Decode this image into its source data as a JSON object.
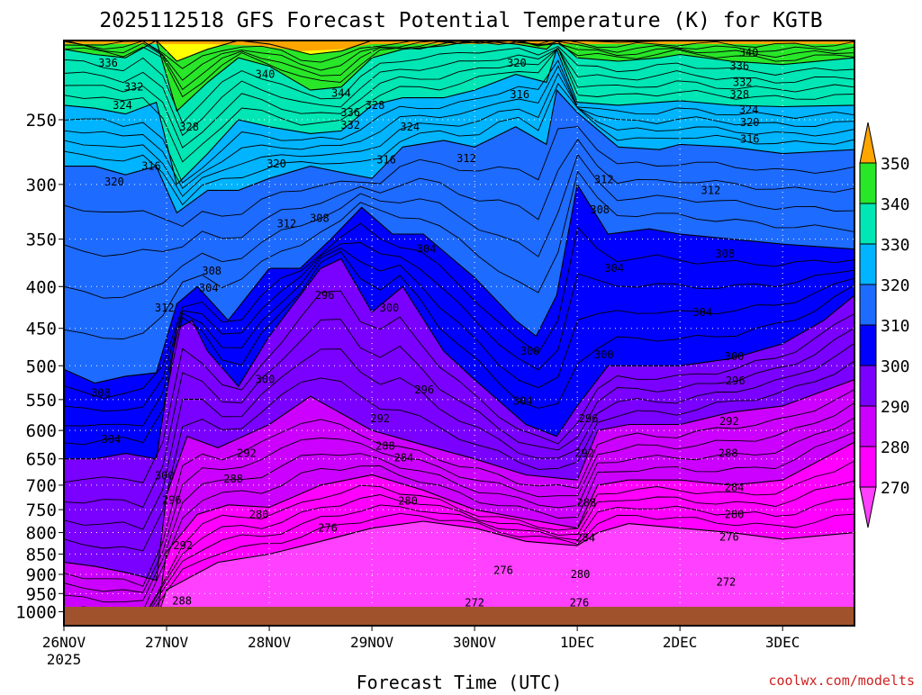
{
  "chart_data": {
    "type": "heatmap",
    "title": "2025112518 GFS Forecast Potential Temperature (K) for KGTB",
    "xlabel": "Forecast Time (UTC)",
    "ylabel": "",
    "credit": "coolwx.com/modelts",
    "x_range_days": [
      0,
      7.7
    ],
    "x_ticks": [
      {
        "day": 0.0,
        "label": "26NOV",
        "sublabel": "2025"
      },
      {
        "day": 1.0,
        "label": "27NOV",
        "sublabel": ""
      },
      {
        "day": 2.0,
        "label": "28NOV",
        "sublabel": ""
      },
      {
        "day": 3.0,
        "label": "29NOV",
        "sublabel": ""
      },
      {
        "day": 4.0,
        "label": "30NOV",
        "sublabel": ""
      },
      {
        "day": 5.0,
        "label": "1DEC",
        "sublabel": ""
      },
      {
        "day": 6.0,
        "label": "2DEC",
        "sublabel": ""
      },
      {
        "day": 7.0,
        "label": "3DEC",
        "sublabel": ""
      }
    ],
    "y_axis": {
      "units": "hPa",
      "reversed": true,
      "log_scale": true,
      "range": [
        1040,
        200
      ],
      "ticks": [
        250,
        300,
        350,
        400,
        450,
        500,
        550,
        600,
        650,
        700,
        750,
        800,
        850,
        900,
        950,
        1000
      ]
    },
    "colorbar": {
      "levels": [
        270,
        280,
        290,
        300,
        310,
        320,
        330,
        340,
        350
      ],
      "labels": [
        "270",
        "280",
        "290",
        "300",
        "310",
        "320",
        "330",
        "340",
        "350"
      ],
      "colors": [
        "#ff00ff",
        "#cc00ff",
        "#7a00ff",
        "#0000ff",
        "#1e6bff",
        "#00b4ff",
        "#00e6b4",
        "#28e628",
        "#ffff00"
      ],
      "extend_low_color": "#ff40ff",
      "extend_high_color": "#ffa500"
    },
    "series": [
      {
        "name": "270 K",
        "color": "#ff00ff",
        "days": [
          0,
          0.5,
          0.9,
          1.0,
          1.5,
          2.0,
          2.5,
          3.0,
          3.5,
          4.0,
          4.5,
          5.0,
          5.2,
          5.5,
          6.0,
          6.5,
          7.0,
          7.7
        ],
        "p": [
          1025,
          1025,
          1025,
          940,
          870,
          850,
          820,
          790,
          775,
          790,
          820,
          830,
          800,
          780,
          790,
          800,
          815,
          800
        ]
      },
      {
        "name": "280 K",
        "color": "#cc00ff",
        "days": [
          0,
          0.5,
          0.9,
          1.0,
          1.3,
          1.6,
          2.0,
          2.5,
          3.0,
          3.5,
          4.0,
          4.5,
          5.0,
          5.2,
          5.5,
          6.0,
          6.5,
          7.0,
          7.7
        ],
        "p": [
          1025,
          1025,
          1025,
          845,
          760,
          740,
          745,
          700,
          680,
          710,
          750,
          770,
          790,
          700,
          690,
          690,
          700,
          690,
          620
        ]
      },
      {
        "name": "290 K",
        "color": "#7a00ff",
        "days": [
          0,
          0.3,
          0.6,
          0.9,
          1.0,
          1.2,
          1.5,
          2.0,
          2.4,
          3.0,
          3.5,
          4.0,
          4.5,
          5.0,
          5.2,
          5.5,
          6.0,
          6.5,
          7.0,
          7.7
        ],
        "p": [
          870,
          880,
          895,
          915,
          720,
          610,
          630,
          590,
          545,
          600,
          625,
          650,
          680,
          690,
          600,
          590,
          590,
          570,
          560,
          520
        ]
      },
      {
        "name": "300 K",
        "color": "#0000ff",
        "days": [
          0,
          0.3,
          0.6,
          0.9,
          1.1,
          1.25,
          1.4,
          1.7,
          2.0,
          2.5,
          2.7,
          3.0,
          3.3,
          3.7,
          4.0,
          4.5,
          4.8,
          5.0,
          5.3,
          5.7,
          6.0,
          6.5,
          7.0,
          7.4,
          7.7
        ],
        "p": [
          650,
          650,
          640,
          650,
          450,
          440,
          480,
          530,
          460,
          380,
          370,
          430,
          400,
          480,
          520,
          590,
          610,
          560,
          500,
          500,
          500,
          490,
          470,
          440,
          410
        ]
      },
      {
        "name": "310 K",
        "color": "#1e6bff",
        "days": [
          0,
          0.3,
          0.6,
          0.9,
          1.1,
          1.3,
          1.6,
          2.0,
          2.3,
          2.6,
          2.9,
          3.2,
          3.5,
          4.0,
          4.4,
          4.6,
          4.8,
          5.0,
          5.3,
          5.7,
          6.0,
          6.5,
          7.0,
          7.7
        ],
        "p": [
          505,
          525,
          515,
          510,
          420,
          400,
          440,
          380,
          380,
          350,
          320,
          345,
          345,
          390,
          440,
          460,
          410,
          300,
          345,
          340,
          345,
          350,
          355,
          360
        ]
      },
      {
        "name": "320 K",
        "color": "#00b4ff",
        "days": [
          0,
          0.3,
          0.6,
          0.9,
          1.1,
          1.4,
          1.7,
          2.0,
          2.4,
          2.7,
          3.0,
          3.3,
          3.7,
          4.0,
          4.4,
          4.7,
          4.8,
          5.0,
          5.4,
          5.8,
          6.0,
          6.5,
          7.0,
          7.7
        ],
        "p": [
          285,
          285,
          292,
          285,
          325,
          305,
          305,
          295,
          285,
          290,
          295,
          270,
          265,
          270,
          255,
          268,
          230,
          245,
          270,
          272,
          268,
          270,
          275,
          272
        ]
      },
      {
        "name": "330 K",
        "color": "#00e6b4",
        "days": [
          0,
          0.3,
          0.6,
          0.9,
          1.1,
          1.4,
          1.7,
          2.0,
          2.4,
          2.7,
          3.0,
          3.3,
          3.7,
          4.0,
          4.4,
          4.7,
          4.8,
          5.0,
          5.4,
          5.8,
          6.0,
          6.5,
          7.0,
          7.7
        ],
        "p": [
          240,
          242,
          246,
          238,
          300,
          275,
          250,
          255,
          260,
          258,
          240,
          235,
          235,
          230,
          220,
          225,
          205,
          238,
          240,
          238,
          237,
          240,
          241,
          240
        ]
      },
      {
        "name": "340 K",
        "color": "#28e628",
        "days": [
          0,
          0.3,
          0.6,
          0.9,
          1.1,
          1.4,
          1.7,
          2.0,
          2.4,
          2.7,
          3.0,
          3.3,
          3.7,
          4.0,
          4.4,
          4.7,
          4.8,
          5.0,
          5.4,
          5.8,
          6.0,
          6.5,
          7.0,
          7.7
        ],
        "p": [
          205,
          208,
          210,
          200,
          244,
          225,
          210,
          215,
          230,
          228,
          210,
          205,
          203,
          200,
          202,
          205,
          200,
          210,
          212,
          210,
          208,
          212,
          214,
          210
        ]
      },
      {
        "name": "350 K",
        "color": "#ffff00",
        "days": [
          0,
          0.9,
          1.1,
          1.4,
          1.7,
          2.0,
          2.4,
          2.7,
          3.0,
          3.7,
          4.0,
          4.8,
          5.0,
          5.4,
          6.0,
          7.0,
          7.7
        ],
        "p": [
          200,
          200,
          212,
          205,
          200,
          202,
          208,
          206,
          200,
          200,
          200,
          200,
          200,
          201,
          200,
          200,
          200
        ]
      }
    ],
    "contour_labels": [
      {
        "text": "336",
        "day": 0.43,
        "p": 213
      },
      {
        "text": "332",
        "day": 0.68,
        "p": 228
      },
      {
        "text": "324",
        "day": 0.57,
        "p": 240
      },
      {
        "text": "328",
        "day": 1.22,
        "p": 255
      },
      {
        "text": "340",
        "day": 1.96,
        "p": 220
      },
      {
        "text": "344",
        "day": 2.7,
        "p": 232
      },
      {
        "text": "336",
        "day": 2.79,
        "p": 245
      },
      {
        "text": "332",
        "day": 2.79,
        "p": 254
      },
      {
        "text": "328",
        "day": 3.03,
        "p": 240
      },
      {
        "text": "324",
        "day": 3.37,
        "p": 255
      },
      {
        "text": "320",
        "day": 4.41,
        "p": 213
      },
      {
        "text": "316",
        "day": 4.44,
        "p": 233
      },
      {
        "text": "340",
        "day": 6.67,
        "p": 207
      },
      {
        "text": "336",
        "day": 6.58,
        "p": 215
      },
      {
        "text": "332",
        "day": 6.61,
        "p": 225
      },
      {
        "text": "328",
        "day": 6.58,
        "p": 233
      },
      {
        "text": "324",
        "day": 6.67,
        "p": 243
      },
      {
        "text": "320",
        "day": 6.68,
        "p": 252
      },
      {
        "text": "316",
        "day": 6.68,
        "p": 264
      },
      {
        "text": "316",
        "day": 0.85,
        "p": 285
      },
      {
        "text": "320",
        "day": 0.49,
        "p": 298
      },
      {
        "text": "320",
        "day": 2.07,
        "p": 283
      },
      {
        "text": "316",
        "day": 3.14,
        "p": 280
      },
      {
        "text": "312",
        "day": 3.92,
        "p": 279
      },
      {
        "text": "312",
        "day": 5.26,
        "p": 296
      },
      {
        "text": "312",
        "day": 6.3,
        "p": 305
      },
      {
        "text": "312",
        "day": 2.17,
        "p": 335
      },
      {
        "text": "308",
        "day": 2.49,
        "p": 330
      },
      {
        "text": "308",
        "day": 5.22,
        "p": 322
      },
      {
        "text": "308",
        "day": 6.44,
        "p": 365
      },
      {
        "text": "304",
        "day": 3.53,
        "p": 360
      },
      {
        "text": "304",
        "day": 5.36,
        "p": 380
      },
      {
        "text": "304",
        "day": 6.22,
        "p": 430
      },
      {
        "text": "308",
        "day": 1.44,
        "p": 383
      },
      {
        "text": "304",
        "day": 1.41,
        "p": 402
      },
      {
        "text": "312",
        "day": 0.98,
        "p": 425
      },
      {
        "text": "296",
        "day": 2.54,
        "p": 410
      },
      {
        "text": "300",
        "day": 3.17,
        "p": 425
      },
      {
        "text": "308",
        "day": 4.54,
        "p": 480
      },
      {
        "text": "304",
        "day": 4.47,
        "p": 552
      },
      {
        "text": "300",
        "day": 5.26,
        "p": 485
      },
      {
        "text": "300",
        "day": 6.53,
        "p": 487
      },
      {
        "text": "296",
        "day": 6.54,
        "p": 522
      },
      {
        "text": "300",
        "day": 1.96,
        "p": 520
      },
      {
        "text": "296",
        "day": 3.51,
        "p": 535
      },
      {
        "text": "296",
        "day": 5.11,
        "p": 580
      },
      {
        "text": "292",
        "day": 3.08,
        "p": 580
      },
      {
        "text": "292",
        "day": 6.48,
        "p": 585
      },
      {
        "text": "308",
        "day": 0.36,
        "p": 540
      },
      {
        "text": "304",
        "day": 0.46,
        "p": 615
      },
      {
        "text": "288",
        "day": 3.13,
        "p": 627
      },
      {
        "text": "284",
        "day": 3.31,
        "p": 648
      },
      {
        "text": "288",
        "day": 6.47,
        "p": 640
      },
      {
        "text": "292",
        "day": 1.78,
        "p": 640
      },
      {
        "text": "292",
        "day": 5.07,
        "p": 640
      },
      {
        "text": "300",
        "day": 0.98,
        "p": 682
      },
      {
        "text": "288",
        "day": 1.65,
        "p": 688
      },
      {
        "text": "296",
        "day": 1.05,
        "p": 730
      },
      {
        "text": "284",
        "day": 6.53,
        "p": 705
      },
      {
        "text": "288",
        "day": 5.09,
        "p": 736
      },
      {
        "text": "280",
        "day": 3.35,
        "p": 732
      },
      {
        "text": "280",
        "day": 1.9,
        "p": 760
      },
      {
        "text": "280",
        "day": 6.53,
        "p": 760
      },
      {
        "text": "276",
        "day": 2.57,
        "p": 790
      },
      {
        "text": "276",
        "day": 6.48,
        "p": 810
      },
      {
        "text": "284",
        "day": 5.08,
        "p": 812
      },
      {
        "text": "292",
        "day": 1.16,
        "p": 830
      },
      {
        "text": "276",
        "day": 4.28,
        "p": 890
      },
      {
        "text": "280",
        "day": 5.03,
        "p": 900
      },
      {
        "text": "272",
        "day": 6.45,
        "p": 920
      },
      {
        "text": "288",
        "day": 1.15,
        "p": 970
      },
      {
        "text": "272",
        "day": 4.0,
        "p": 975
      },
      {
        "text": "276",
        "day": 5.02,
        "p": 975
      }
    ]
  }
}
